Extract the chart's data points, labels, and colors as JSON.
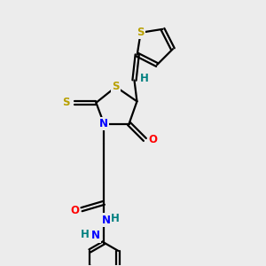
{
  "bg_color": "#ececec",
  "atom_colors": {
    "S": "#b8a000",
    "N": "#0000ff",
    "O": "#ff0000",
    "C": "#000000",
    "H": "#008080"
  },
  "font_size": 8.5,
  "line_width": 1.6
}
